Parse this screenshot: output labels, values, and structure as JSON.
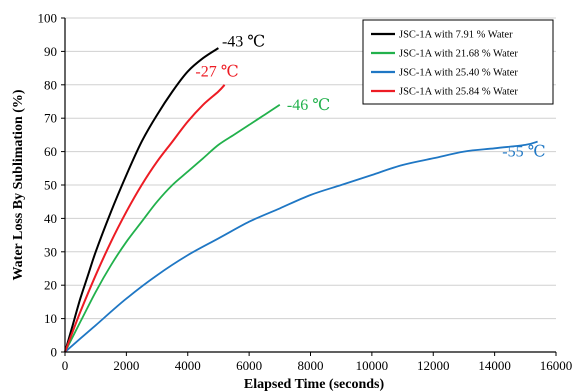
{
  "chart_data": {
    "type": "line",
    "title": "",
    "xlabel": "Elapsed Time (seconds)",
    "ylabel": "Water Loss By Sublimation (%)",
    "xlim": [
      0,
      16000
    ],
    "ylim": [
      0,
      100
    ],
    "xticks": [
      0,
      2000,
      4000,
      6000,
      8000,
      10000,
      12000,
      14000,
      16000
    ],
    "yticks": [
      0,
      10,
      20,
      30,
      40,
      50,
      60,
      70,
      80,
      90,
      100
    ],
    "grid": "horizontal",
    "legend": "top-right",
    "series": [
      {
        "name": "JSC-1A with 7.91 % Water",
        "color": "#000000",
        "annotation": "-43 ℃",
        "x": [
          0,
          250,
          500,
          750,
          1000,
          1500,
          2000,
          2500,
          3000,
          3500,
          4000,
          4500,
          5000
        ],
        "y": [
          0,
          8,
          16,
          23,
          30,
          42,
          53,
          63,
          71,
          78,
          84,
          88,
          91
        ]
      },
      {
        "name": "JSC-1A with 21.68 % Water",
        "color": "#22b14c",
        "annotation": "-46 ℃",
        "x": [
          0,
          500,
          1000,
          1500,
          2000,
          2500,
          3000,
          3500,
          4000,
          4500,
          5000,
          5500,
          6000,
          6500,
          7000
        ],
        "y": [
          0,
          9,
          18,
          26,
          33,
          39,
          45,
          50,
          54,
          58,
          62,
          65,
          68,
          71,
          74
        ]
      },
      {
        "name": "JSC-1A with 25.40 % Water",
        "color": "#1f77c4",
        "annotation": "-55 ℃",
        "x": [
          0,
          500,
          1000,
          2000,
          3000,
          4000,
          5000,
          6000,
          7000,
          8000,
          9000,
          10000,
          11000,
          12000,
          13000,
          14000,
          15000,
          15400
        ],
        "y": [
          0,
          4,
          8,
          16,
          23,
          29,
          34,
          39,
          43,
          47,
          50,
          53,
          56,
          58,
          60,
          61,
          62,
          63
        ]
      },
      {
        "name": "JSC-1A with 25.84 % Water",
        "color": "#ed1c24",
        "annotation": "-27 ℃",
        "x": [
          0,
          500,
          1000,
          1500,
          2000,
          2500,
          3000,
          3500,
          4000,
          4500,
          5000,
          5200
        ],
        "y": [
          0,
          12,
          23,
          33,
          42,
          50,
          57,
          63,
          69,
          74,
          78,
          80
        ]
      }
    ]
  }
}
